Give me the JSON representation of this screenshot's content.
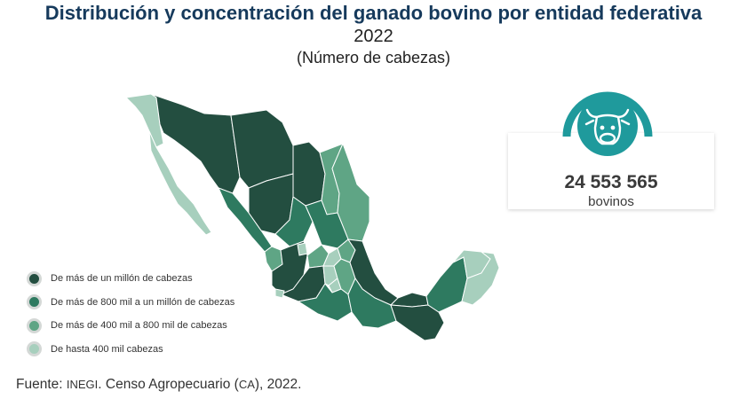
{
  "title": "Distribución y concentración del ganado bovino por entidad federativa",
  "year": "2022",
  "unit": "(Número de cabezas)",
  "legend": [
    {
      "label": "De más de un millón de cabezas",
      "color": "#234e40"
    },
    {
      "label": "De más de 800 mil a un millón de cabezas",
      "color": "#2e7a60"
    },
    {
      "label": "De más de 400 mil a 800 mil de cabezas",
      "color": "#5fa585"
    },
    {
      "label": "De hasta 400 mil cabezas",
      "color": "#a7cfbd"
    }
  ],
  "summary": {
    "icon": "cow-head-icon",
    "value": "24 553 565",
    "label": "bovinos",
    "accent": "#1f9a9c"
  },
  "source": {
    "prefix": "Fuente: ",
    "org": "INEGI",
    "middle": ". Censo Agropecuario (",
    "abbr": "CA",
    "suffix": "), 2022."
  }
}
